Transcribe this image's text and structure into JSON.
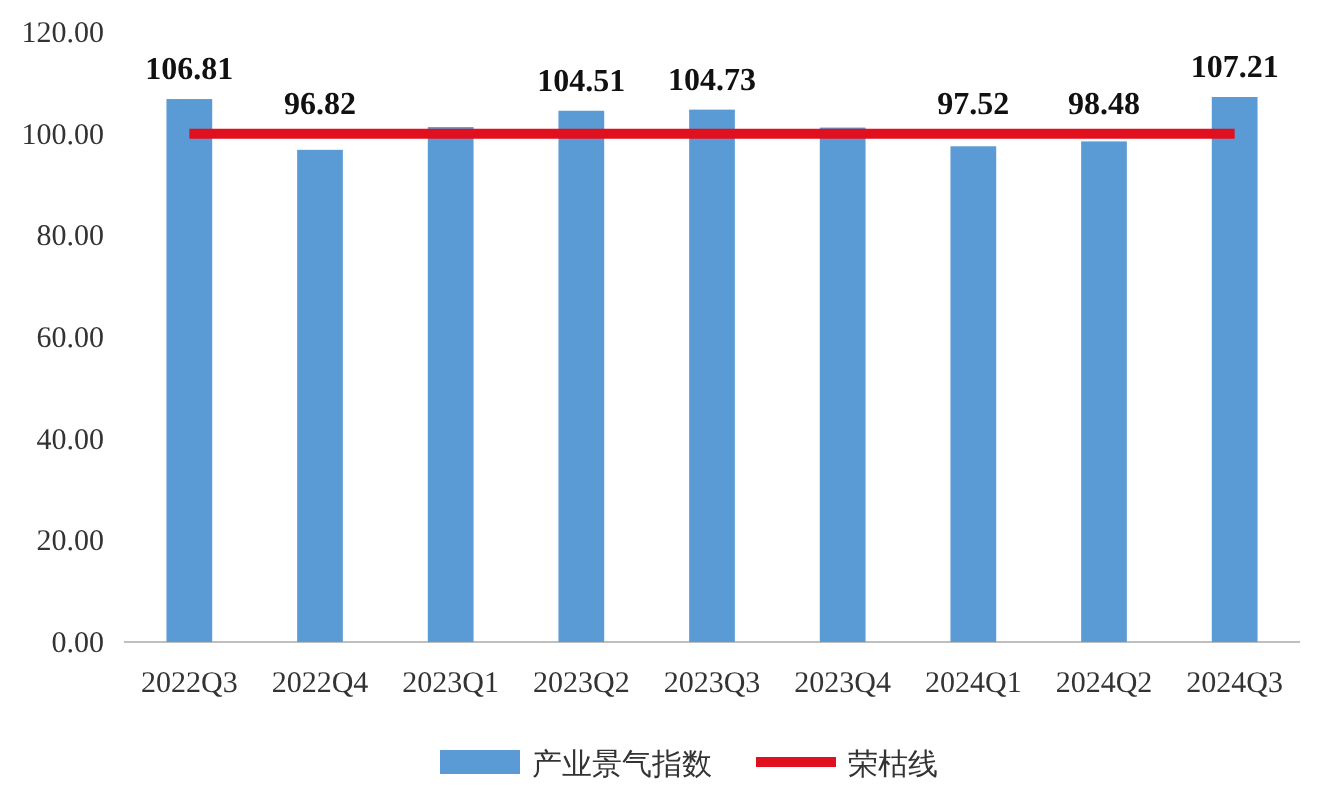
{
  "chart_data": {
    "type": "bar",
    "categories": [
      "2022Q3",
      "2022Q4",
      "2023Q1",
      "2023Q2",
      "2023Q3",
      "2023Q4",
      "2024Q1",
      "2024Q2",
      "2024Q3"
    ],
    "series": [
      {
        "name": "产业景气指数",
        "color": "#5b9bd5",
        "values": [
          106.81,
          96.82,
          101.3,
          104.51,
          104.73,
          101.2,
          97.52,
          98.48,
          107.21
        ],
        "value_labels": [
          "106.81",
          "96.82",
          null,
          "104.51",
          "104.73",
          null,
          "97.52",
          "98.48",
          "107.21"
        ]
      },
      {
        "name": "荣枯线",
        "type": "line",
        "color": "#e0101e",
        "values": [
          100,
          100,
          100,
          100,
          100,
          100,
          100,
          100,
          100
        ]
      }
    ],
    "ylim": [
      0,
      120
    ],
    "yticks": [
      {
        "value": 0,
        "label": "0.00"
      },
      {
        "value": 20,
        "label": "20.00"
      },
      {
        "value": 40,
        "label": "40.00"
      },
      {
        "value": 60,
        "label": "60.00"
      },
      {
        "value": 80,
        "label": "80.00"
      },
      {
        "value": 100,
        "label": "100.00"
      },
      {
        "value": 120,
        "label": "120.00"
      }
    ],
    "grid": false,
    "legend": "bottom"
  }
}
